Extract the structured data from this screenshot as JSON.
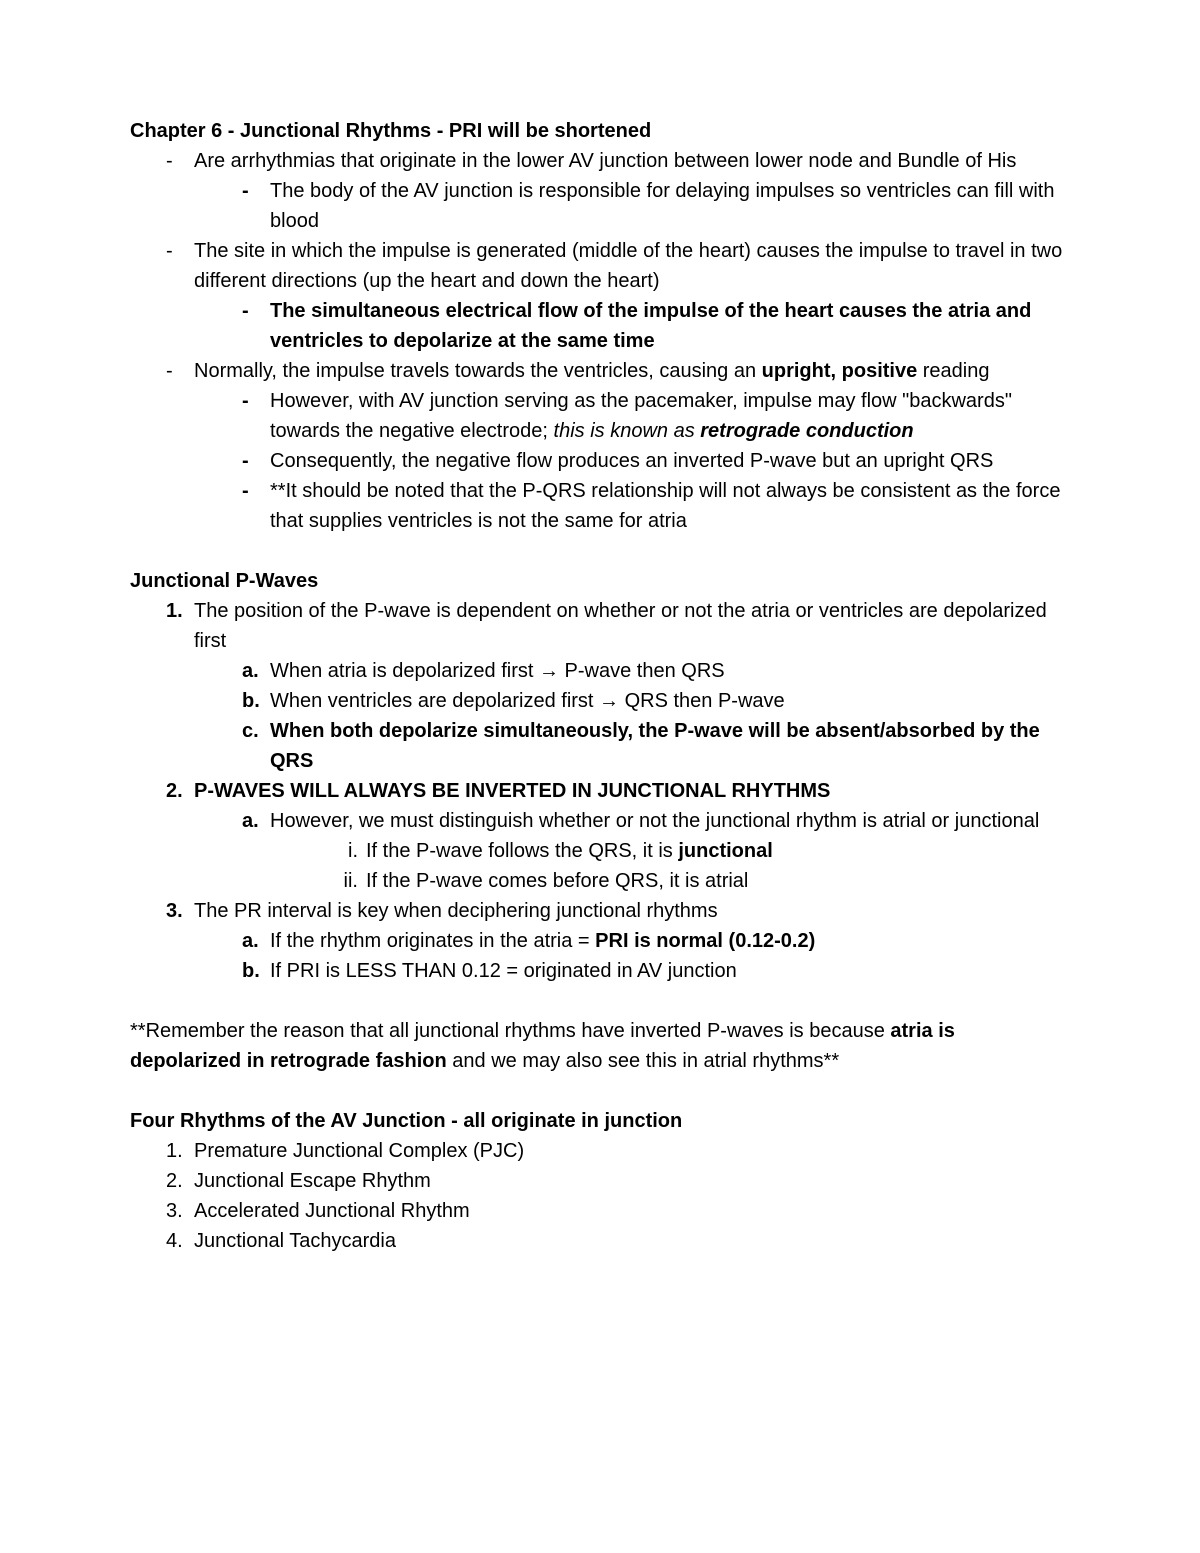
{
  "title": "Chapter 6 - Junctional Rhythms - PRI will be shortened",
  "section1": {
    "b1": "Are arrhythmias that originate in the lower AV junction between lower node and Bundle of His",
    "b1a": "The body of the AV junction is responsible for delaying impulses so ventricles can fill with blood",
    "b2": "The site in which the impulse is generated (middle of the heart) causes the impulse to travel in two different directions (up the heart and down the heart)",
    "b2a": "The simultaneous electrical flow of the impulse of the heart causes the atria and ventricles to depolarize at the same time",
    "b3_pre": "Normally, the impulse travels towards the ventricles, causing an ",
    "b3_bold": "upright, positive",
    "b3_post": " reading",
    "b3a_pre": "However, with AV junction serving as the pacemaker, impulse may flow \"backwards\" towards the negative electrode; ",
    "b3a_italic": "this is known as ",
    "b3a_bolditalic": "retrograde conduction",
    "b3b": "Consequently, the negative flow produces an inverted P-wave but an upright QRS",
    "b3c": "**It should be noted that the P-QRS relationship will not always be consistent as the force that supplies ventricles is not the same for atria"
  },
  "section2": {
    "heading": "Junctional P-Waves",
    "n1": "The position of the P-wave is dependent on whether or not the atria or ventricles are depolarized first",
    "n1a": "When atria is depolarized first → P-wave then QRS",
    "n1b": "When ventricles are depolarized first → QRS then P-wave",
    "n1c": "When both depolarize simultaneously, the P-wave will be absent/absorbed by the QRS",
    "n2": "P-WAVES WILL ALWAYS BE INVERTED IN JUNCTIONAL RHYTHMS",
    "n2a": "However, we must distinguish whether or not the junctional rhythm is atrial or junctional",
    "n2a_i_pre": "If the P-wave follows the QRS, it is ",
    "n2a_i_bold": "junctional",
    "n2a_ii": "If the P-wave comes before QRS, it is atrial",
    "n3": "The PR interval is key when deciphering junctional rhythms",
    "n3a_pre": "If the rhythm originates in the atria = ",
    "n3a_bold": "PRI is normal (0.12-0.2)",
    "n3b": "If PRI is LESS THAN 0.12 = originated in AV junction"
  },
  "note": {
    "pre": "**Remember the reason that all junctional rhythms have inverted P-waves is because ",
    "bold": "atria is depolarized in retrograde fashion",
    "post": " and we may also see this in atrial rhythms**"
  },
  "section3": {
    "heading": "Four Rhythms of the AV Junction - all originate in junction",
    "r1": "Premature Junctional Complex (PJC)",
    "r2": "Junctional Escape Rhythm",
    "r3": "Accelerated Junctional Rhythm",
    "r4": "Junctional Tachycardia"
  },
  "markers": {
    "m1": "1.",
    "m2": "2.",
    "m3": "3.",
    "m4": "4.",
    "a": "a.",
    "b": "b.",
    "c": "c.",
    "ri": "i.",
    "rii": "ii."
  }
}
